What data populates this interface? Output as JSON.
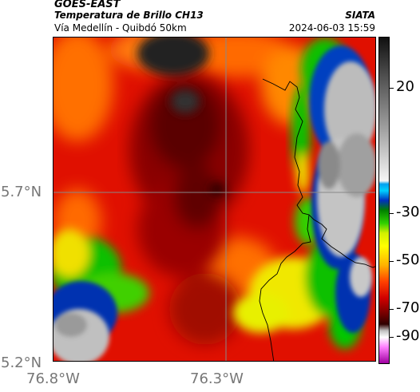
{
  "header": {
    "satellite": "GOES-EAST",
    "product": "Temperatura de Brillo CH13",
    "region": "Vía Medellín - Quibdó 50km",
    "organization": "SIATA",
    "datetime": "2024-06-03 15:59"
  },
  "axes": {
    "lat_labels": [
      "5.7°N",
      "5.2°N"
    ],
    "lon_labels": [
      "76.8°W",
      "76.3°W"
    ]
  },
  "colorbar": {
    "labels": [
      "20",
      "-30",
      "-50",
      "-70",
      "-90"
    ],
    "colors": {
      "warm_light": "#e6e6e6",
      "warm_dark": "#333333",
      "cyan": "#00c0f0",
      "blue": "#0020a0",
      "green": "#00c000",
      "yellow": "#f0f000",
      "orange": "#ff8000",
      "red": "#e00000",
      "darkred": "#500000",
      "magenta": "#a000a0"
    }
  }
}
